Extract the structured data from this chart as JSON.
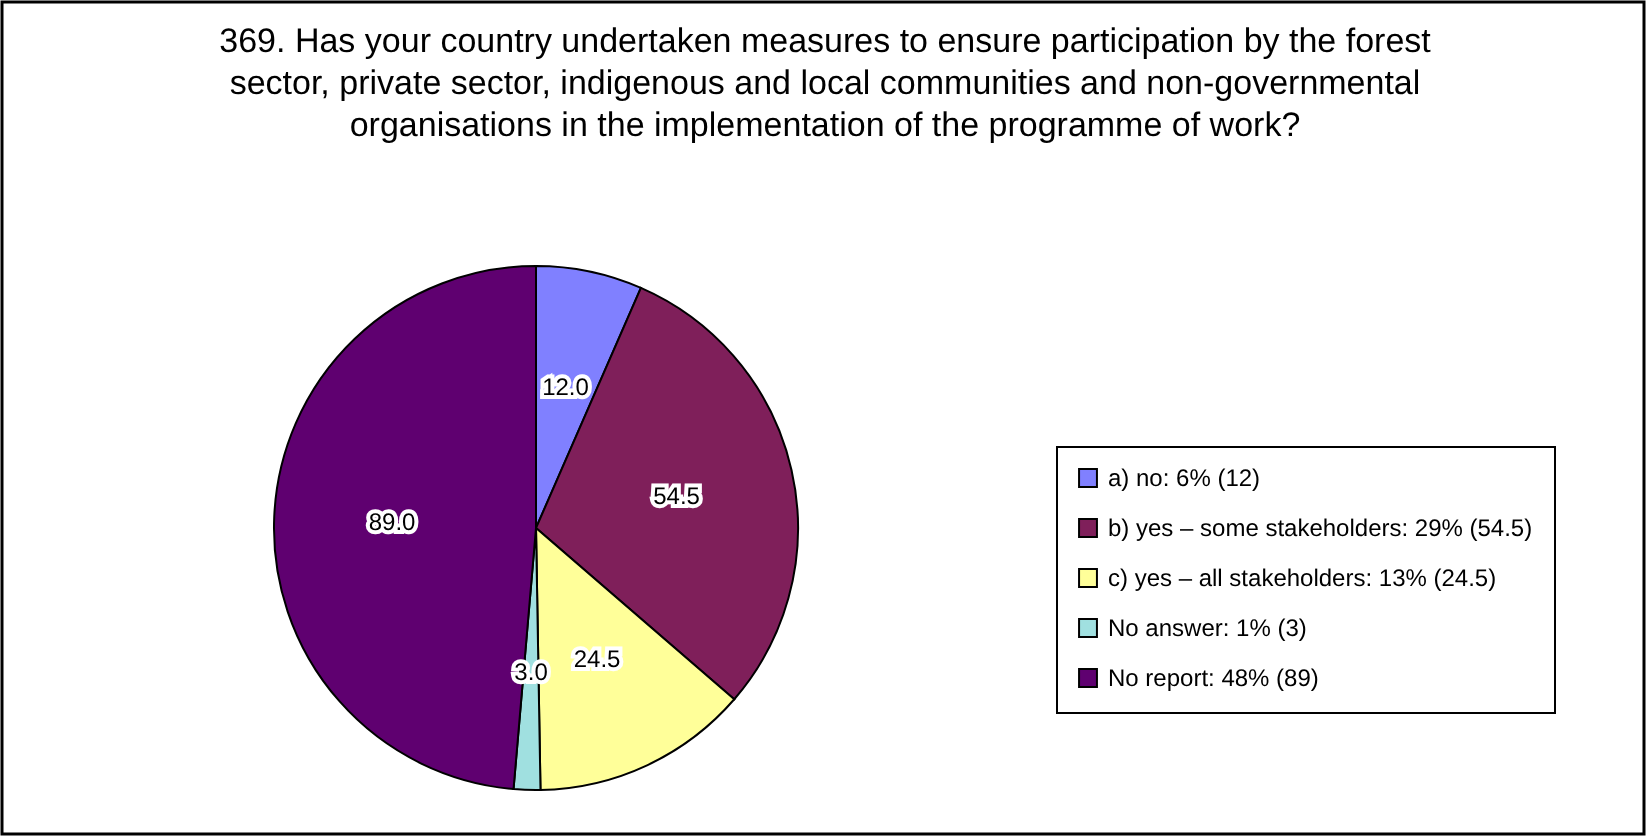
{
  "chart_data": {
    "type": "pie",
    "title": "369. Has your country undertaken measures to ensure participation by the forest sector, private sector, indigenous and local communities and non-governmental organisations in the implementation of the programme of work?",
    "categories": [
      "a) no: 6% (12)",
      "b) yes – some stakeholders: 29% (54.5)",
      "c) yes – all stakeholders: 13% (24.5)",
      "No answer: 1% (3)",
      "No report: 48% (89)"
    ],
    "values": [
      12,
      54.5,
      24.5,
      3,
      89
    ],
    "colors": [
      "#8080ff",
      "#7f1f5a",
      "#ffff99",
      "#a0e0e0",
      "#5f0070"
    ],
    "value_labels": [
      "12.0",
      "54.5",
      "24.5",
      "3.0",
      "89.0"
    ],
    "legend": "right"
  }
}
